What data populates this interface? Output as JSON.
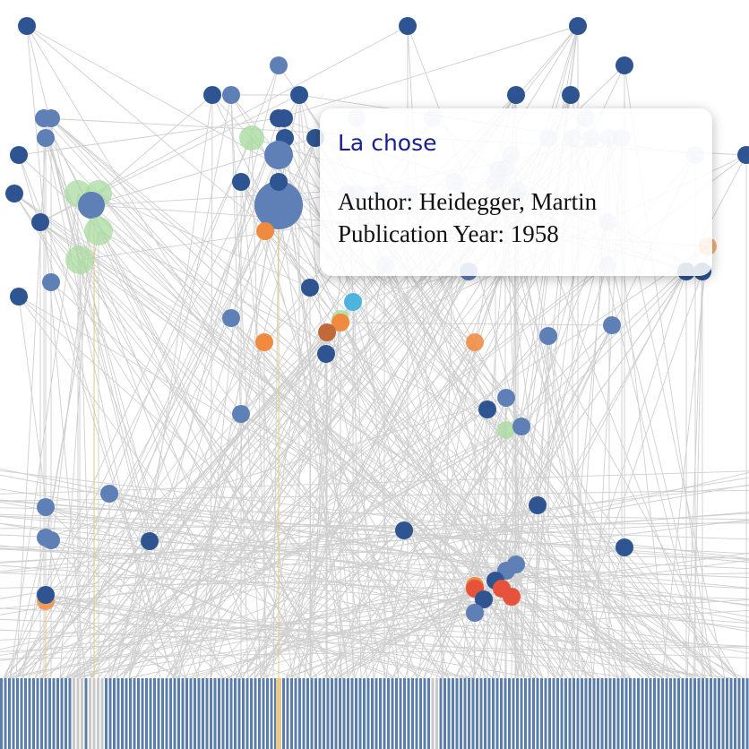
{
  "tooltip": {
    "title": "La chose",
    "author_label": "Author:",
    "author": "Heidegger, Martin",
    "year_label": "Publication Year:",
    "year": "1958"
  },
  "colors": {
    "background": "#ffffff",
    "edge": "#cfcfcf",
    "edge_highlight": "#e8c989",
    "node_dark_blue": "#2e5591",
    "node_mid_blue": "#5f80b6",
    "node_light_blue": "#9fb6d9",
    "node_green": "#a9dba0",
    "node_orange": "#ef8a3e",
    "node_red": "#e6533a",
    "node_brown": "#c06a3a",
    "node_cyan": "#4fb3e0",
    "strip_blue": "#5b7dab",
    "strip_gray": "#c9c9c9",
    "tooltip_title": "#1a1f8f"
  }
}
